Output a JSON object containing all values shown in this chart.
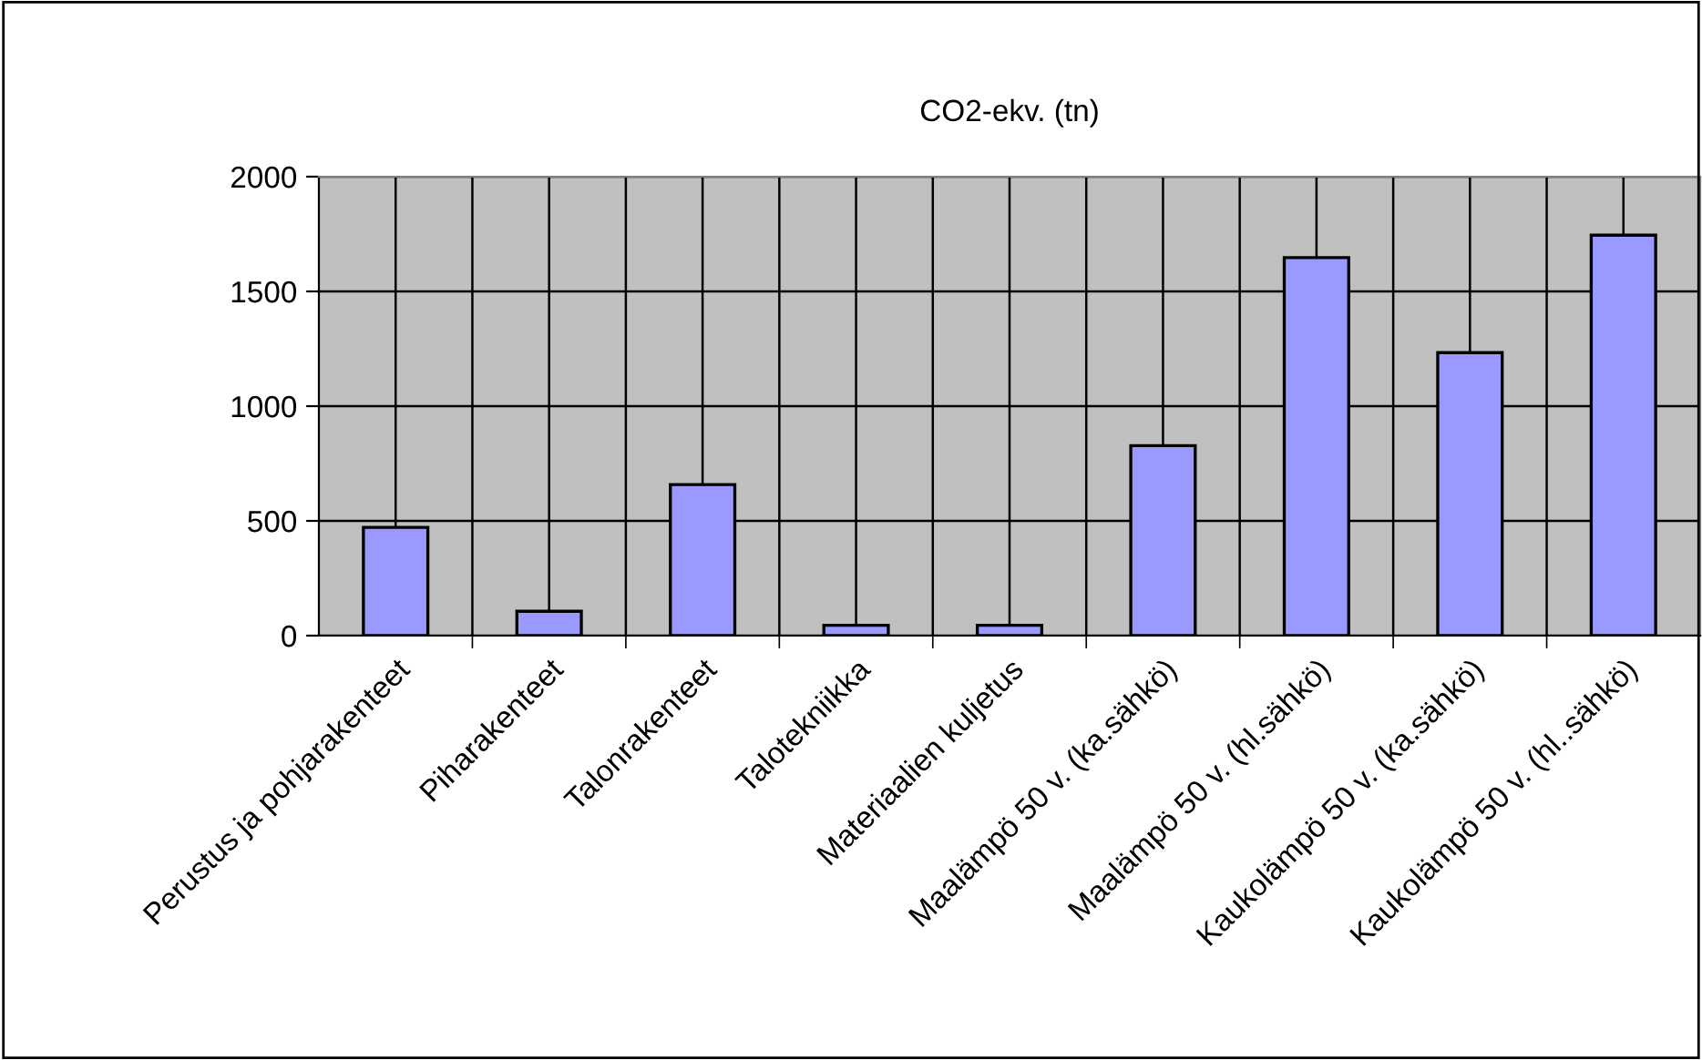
{
  "chart_data": {
    "type": "bar",
    "title": "CO2-ekv. (tn)",
    "categories": [
      "Perustus ja pohjarakenteet",
      "Piharakenteet",
      "Talonrakenteet",
      "Talotekniikka",
      "Materiaalien kuljetus",
      "Maalämpö 50 v. (ka.sähkö)",
      "Maalämpö 50 v. (hl.sähkö)",
      "Kaukolämpö 50 v. (ka.sähkö)",
      "Kaukolämpö 50 v. (hl..sähkö)"
    ],
    "values": [
      472,
      106,
      658,
      45,
      45,
      828,
      1647,
      1233,
      1745
    ],
    "color": "#9999ff",
    "ylim": [
      0,
      2000
    ],
    "yticks": [
      0,
      500,
      1000,
      1500,
      2000
    ],
    "grid": true,
    "legend": false
  }
}
